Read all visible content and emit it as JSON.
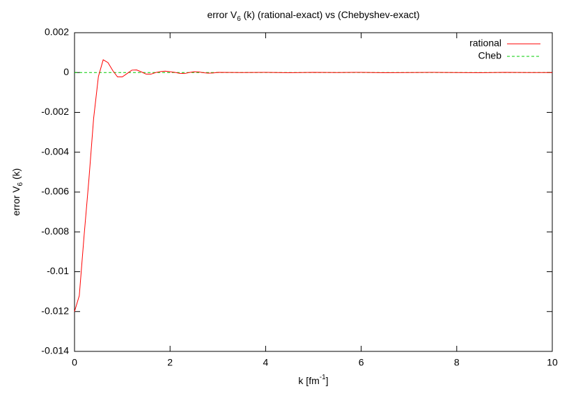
{
  "chart_data": {
    "type": "line",
    "title_parts": [
      "error V",
      "6",
      " (k) (rational-exact) vs (Chebyshev-exact)"
    ],
    "xlabel_parts": [
      "k [fm",
      "-1",
      "]"
    ],
    "ylabel_parts": [
      "error V",
      "6",
      " (k)"
    ],
    "x": [
      0,
      0.1,
      0.2,
      0.3,
      0.4,
      0.5,
      0.6,
      0.7,
      0.8,
      0.9,
      1.0,
      1.1,
      1.2,
      1.3,
      1.4,
      1.5,
      1.6,
      1.7,
      1.8,
      1.9,
      2.0,
      2.1,
      2.2,
      2.3,
      2.4,
      2.5,
      2.6,
      2.7,
      2.8,
      2.9,
      3.0,
      3.5,
      4.0,
      4.5,
      5.0,
      5.5,
      6.0,
      6.5,
      7.0,
      7.5,
      8.0,
      8.5,
      9.0,
      9.5,
      10.0
    ],
    "series": [
      {
        "name": "rational",
        "color": "#ff0000",
        "dash": false,
        "values": [
          -0.012,
          -0.0112,
          -0.0082,
          -0.0054,
          -0.0023,
          -0.0002,
          0.00064,
          0.0005,
          0.0001,
          -0.00022,
          -0.00022,
          -5e-05,
          0.00012,
          0.00013,
          3e-05,
          -8e-05,
          -8e-05,
          0.0,
          5e-05,
          7e-05,
          4e-05,
          1e-05,
          -4e-05,
          -5e-05,
          0.0,
          4e-05,
          3e-05,
          -1e-05,
          -3e-05,
          -2e-05,
          1e-05,
          0.0,
          1e-05,
          -1e-05,
          1e-05,
          0.0,
          1e-05,
          -1e-05,
          0.0,
          1e-05,
          0.0,
          -1e-05,
          1e-05,
          0.0,
          0.0
        ]
      },
      {
        "name": "Cheb",
        "color": "#00cc00",
        "dash": true,
        "values": [
          0,
          0,
          0,
          0,
          0,
          0,
          0,
          0,
          0,
          0,
          0,
          0,
          0,
          0,
          0,
          0,
          0,
          0,
          0,
          0,
          0,
          0,
          0,
          0,
          0,
          0,
          0,
          0,
          0,
          0,
          0,
          0,
          0,
          0,
          0,
          0,
          0,
          0,
          0,
          0,
          0,
          0,
          0,
          0,
          0
        ]
      }
    ],
    "xlim": [
      0,
      10
    ],
    "xticks": [
      0,
      2,
      4,
      6,
      8,
      10
    ],
    "ylim": [
      -0.014,
      0.002
    ],
    "yticks": [
      0.002,
      0,
      -0.002,
      -0.004,
      -0.006,
      -0.008,
      -0.01,
      -0.012,
      -0.014
    ],
    "grid": false,
    "legend": "top-right"
  }
}
